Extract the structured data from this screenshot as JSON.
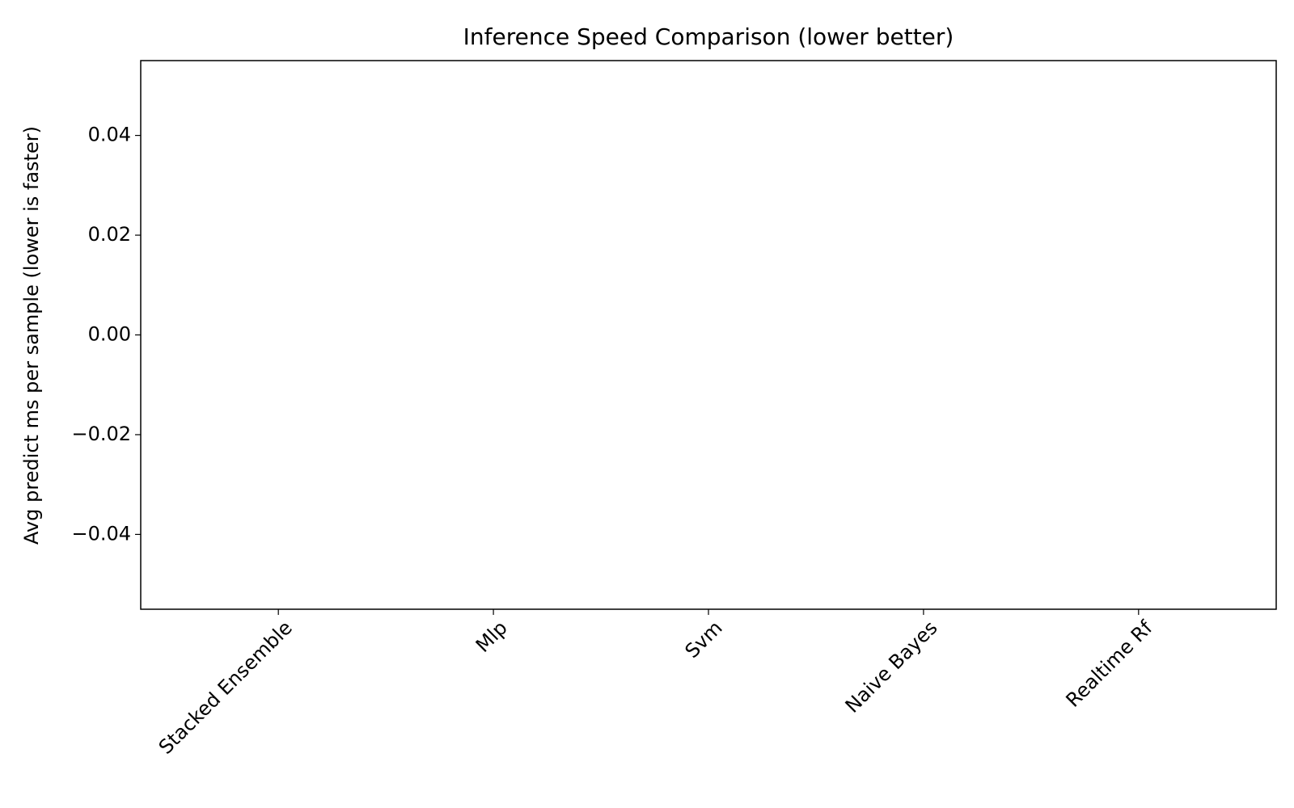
{
  "chart_data": {
    "type": "bar",
    "title": "Inference Speed Comparison (lower better)",
    "y_label": "Avg predict ms per sample (lower is faster)",
    "categories": [
      "Stacked Ensemble",
      "Mlp",
      "Svm",
      "Naive Bayes",
      "Realtime Rf"
    ],
    "values": [
      0,
      0,
      0,
      0,
      0
    ],
    "color": "#1f77b4",
    "ylim": [
      -0.055,
      0.055
    ],
    "yticks": [
      {
        "value": -0.04,
        "label": "−0.04"
      },
      {
        "value": -0.02,
        "label": "−0.02"
      },
      {
        "value": 0,
        "label": "0.00"
      },
      {
        "value": 0.02,
        "label": "0.02"
      },
      {
        "value": 0.04,
        "label": "0.04"
      }
    ],
    "grid": false
  }
}
